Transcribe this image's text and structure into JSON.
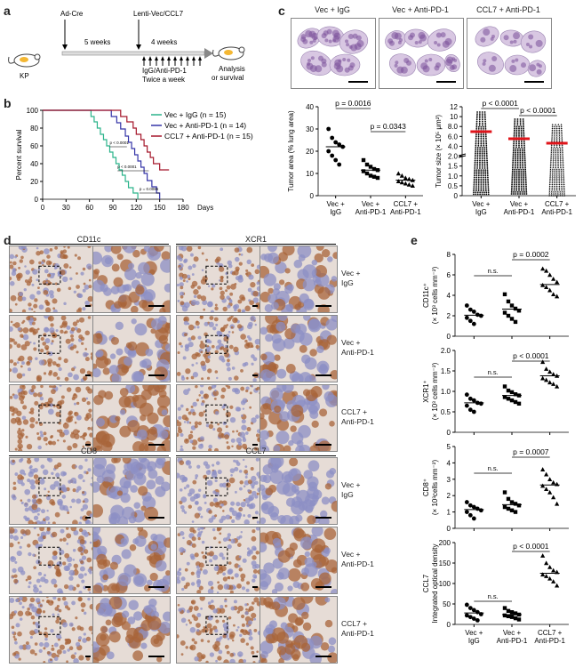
{
  "panel_letters": {
    "a": "a",
    "b": "b",
    "c": "c",
    "d": "d",
    "e": "e"
  },
  "panel_a": {
    "ad_cre": "Ad-Cre",
    "lenti": "Lenti-Vec/CCL7",
    "weeks1": "5 weeks",
    "weeks2": "4 weeks",
    "mouse": "KP",
    "treat1": "IgG/Anti-PD-1",
    "treat2": "Twice a week",
    "analysis1": "Analysis",
    "analysis2": "or survival"
  },
  "panel_c_titles": [
    "Vec + IgG",
    "Vec + Anti-PD-1",
    "CCL7 + Anti-PD-1"
  ],
  "panel_d": {
    "top_headers": [
      "CD11c",
      "XCR1"
    ],
    "bottom_headers": [
      "CD8",
      "CCL7"
    ],
    "row_labels": [
      [
        "Vec +",
        "IgG"
      ],
      [
        "Vec +",
        "Anti-PD-1"
      ],
      [
        "CCL7 +",
        "Anti-PD-1"
      ]
    ]
  },
  "colors": {
    "vec_igg": "#2ab38a",
    "vec_antipd1": "#3535a8",
    "ccl7_antipd1": "#a5162a",
    "tumor_mean": "#e0151b",
    "ihc_brown": "#a8643a",
    "ihc_blue": "#8c8fc4"
  },
  "chart_data": [
    {
      "id": "survival",
      "type": "line",
      "ylabel": "Percent survival",
      "xunit": "Days",
      "xticks": [
        0,
        30,
        60,
        90,
        120,
        150,
        180
      ],
      "yticks": [
        0,
        20,
        40,
        60,
        80,
        100
      ],
      "xlim": [
        0,
        180
      ],
      "ylim": [
        0,
        100
      ],
      "pvalues": [
        "p < 0.0001",
        "p < 0.0001",
        "p = 0.0086"
      ],
      "series": [
        {
          "name": "Vec + IgG (n = 15)",
          "color": "#2ab38a",
          "points": [
            [
              0,
              100
            ],
            [
              58,
              100
            ],
            [
              62,
              93
            ],
            [
              66,
              87
            ],
            [
              70,
              80
            ],
            [
              74,
              73
            ],
            [
              78,
              67
            ],
            [
              82,
              60
            ],
            [
              86,
              53
            ],
            [
              90,
              47
            ],
            [
              94,
              40
            ],
            [
              98,
              33
            ],
            [
              102,
              27
            ],
            [
              106,
              20
            ],
            [
              110,
              13
            ],
            [
              116,
              7
            ],
            [
              122,
              0
            ]
          ]
        },
        {
          "name": "Vec + Anti-PD-1 (n = 14)",
          "color": "#3535a8",
          "points": [
            [
              0,
              100
            ],
            [
              80,
              100
            ],
            [
              88,
              93
            ],
            [
              95,
              86
            ],
            [
              100,
              79
            ],
            [
              106,
              71
            ],
            [
              110,
              64
            ],
            [
              114,
              57
            ],
            [
              118,
              50
            ],
            [
              122,
              43
            ],
            [
              126,
              36
            ],
            [
              130,
              29
            ],
            [
              134,
              21
            ],
            [
              140,
              14
            ],
            [
              146,
              7
            ],
            [
              150,
              0
            ]
          ]
        },
        {
          "name": "CCL7 + Anti-PD-1 (n = 15)",
          "color": "#a5162a",
          "points": [
            [
              0,
              100
            ],
            [
              96,
              100
            ],
            [
              100,
              93
            ],
            [
              108,
              87
            ],
            [
              116,
              80
            ],
            [
              120,
              73
            ],
            [
              126,
              67
            ],
            [
              130,
              60
            ],
            [
              134,
              53
            ],
            [
              138,
              47
            ],
            [
              142,
              40
            ],
            [
              150,
              33
            ],
            [
              162,
              33
            ]
          ]
        }
      ]
    },
    {
      "id": "tumor_area",
      "type": "scatter",
      "ylabel": "Tumor area (% lung area)",
      "yticks": [
        0,
        10,
        20,
        30,
        40
      ],
      "ylim": [
        0,
        40
      ],
      "categories": [
        [
          "Vec +",
          "IgG"
        ],
        [
          "Vec +",
          "Anti-PD-1"
        ],
        [
          "CCL7 +",
          "Anti-PD-1"
        ]
      ],
      "groups": [
        {
          "values": [
            30,
            26,
            24,
            23,
            22,
            20,
            18,
            16,
            14
          ],
          "mean": 22
        },
        {
          "values": [
            16,
            14,
            13,
            12,
            11.5,
            11,
            10,
            9,
            8.5,
            8
          ],
          "mean": 11.5
        },
        {
          "values": [
            10,
            9,
            8,
            7.5,
            7,
            6.5,
            6,
            5.5,
            5,
            4.5
          ],
          "mean": 7
        }
      ],
      "pvalues": [
        "p = 0.0016",
        "p = 0.0343"
      ]
    },
    {
      "id": "tumor_size",
      "type": "scatter",
      "ylabel": "Tumor size (× 10⁵ μm²)",
      "yticks": [
        "0",
        "0.5",
        "1.0",
        "1.5",
        "2.0",
        "4.0",
        "6.0",
        "8.0",
        "10",
        "12"
      ],
      "categories": [
        [
          "Vec +",
          "IgG"
        ],
        [
          "Vec +",
          "Anti-PD-1"
        ],
        [
          "CCL7 +",
          "Anti-PD-1"
        ]
      ],
      "pvalues": [
        "p < 0.0001",
        "p < 0.0001"
      ]
    },
    {
      "id": "cd11c",
      "type": "scatter",
      "ylabel": [
        "CD11c⁺",
        "(× 10³ cells mm⁻²)"
      ],
      "yticks": [
        0,
        2,
        4,
        6,
        8
      ],
      "ylim": [
        0,
        8
      ],
      "groups": [
        {
          "values": [
            3,
            2.6,
            2.4,
            2.1,
            2,
            1.8,
            1.5,
            1.2
          ],
          "mean": 2.05
        },
        {
          "values": [
            4.1,
            3.4,
            3,
            2.7,
            2.5,
            2.3,
            2,
            1.7,
            1.4
          ],
          "mean": 2.65
        },
        {
          "values": [
            6.6,
            6.4,
            6,
            5.6,
            5.3,
            5,
            4.8,
            4.5,
            4.1,
            3.9
          ],
          "mean": 5.05
        }
      ],
      "pvalues": [
        "n.s.",
        "p = 0.0002"
      ]
    },
    {
      "id": "xcr1",
      "type": "scatter",
      "ylabel": [
        "XCR1⁺",
        "(× 10³ cells mm⁻²)"
      ],
      "yticks": [
        0,
        0.5,
        1.0,
        1.5,
        2.0
      ],
      "ylim": [
        0,
        2
      ],
      "ytick_labels": [
        "0",
        "0.5",
        "1.0",
        "1.5",
        "2.0"
      ],
      "groups": [
        {
          "values": [
            0.92,
            0.82,
            0.78,
            0.72,
            0.7,
            0.65,
            0.55,
            0.5
          ],
          "mean": 0.72
        },
        {
          "values": [
            1.12,
            1.02,
            0.98,
            0.93,
            0.9,
            0.86,
            0.82,
            0.78,
            0.74,
            0.7
          ],
          "mean": 0.9
        },
        {
          "values": [
            1.72,
            1.55,
            1.48,
            1.42,
            1.38,
            1.32,
            1.28,
            1.22,
            1.18,
            1.12
          ],
          "mean": 1.38
        }
      ],
      "pvalues": [
        "n.s.",
        "p < 0.0001"
      ]
    },
    {
      "id": "cd8",
      "type": "scatter",
      "ylabel": [
        "CD8⁺",
        "(× 10³cells mm⁻²)"
      ],
      "yticks": [
        0,
        1,
        2,
        3,
        4,
        5
      ],
      "ylim": [
        0,
        5
      ],
      "groups": [
        {
          "values": [
            1.6,
            1.4,
            1.3,
            1.2,
            1.1,
            1,
            0.8,
            0.6
          ],
          "mean": 1.15
        },
        {
          "values": [
            2.2,
            1.8,
            1.6,
            1.5,
            1.4,
            1.3,
            1.2,
            1.1,
            1
          ],
          "mean": 1.45
        },
        {
          "values": [
            3.6,
            3.3,
            3,
            2.8,
            2.7,
            2.6,
            2.4,
            2.2,
            1.9,
            1.5
          ],
          "mean": 2.65
        }
      ],
      "pvalues": [
        "n.s.",
        "p = 0.0007"
      ]
    },
    {
      "id": "ccl7",
      "type": "scatter",
      "ylabel": [
        "CCL7",
        "Integrated optical density"
      ],
      "yticks": [
        0,
        50,
        100,
        150,
        200
      ],
      "ylim": [
        0,
        200
      ],
      "categories": [
        [
          "Vec +",
          "IgG"
        ],
        [
          "Vec +",
          "Anti-PD-1"
        ],
        [
          "CCL7 +",
          "Anti-PD-1"
        ]
      ],
      "groups": [
        {
          "values": [
            48,
            40,
            35,
            30,
            25,
            22,
            18,
            14,
            10
          ],
          "mean": 28
        },
        {
          "values": [
            40,
            33,
            30,
            27,
            24,
            22,
            20,
            18,
            15,
            12
          ],
          "mean": 24
        },
        {
          "values": [
            168,
            150,
            140,
            132,
            128,
            122,
            118,
            112,
            105,
            95
          ],
          "mean": 125
        }
      ],
      "pvalues": [
        "n.s.",
        "p < 0.0001"
      ]
    }
  ]
}
